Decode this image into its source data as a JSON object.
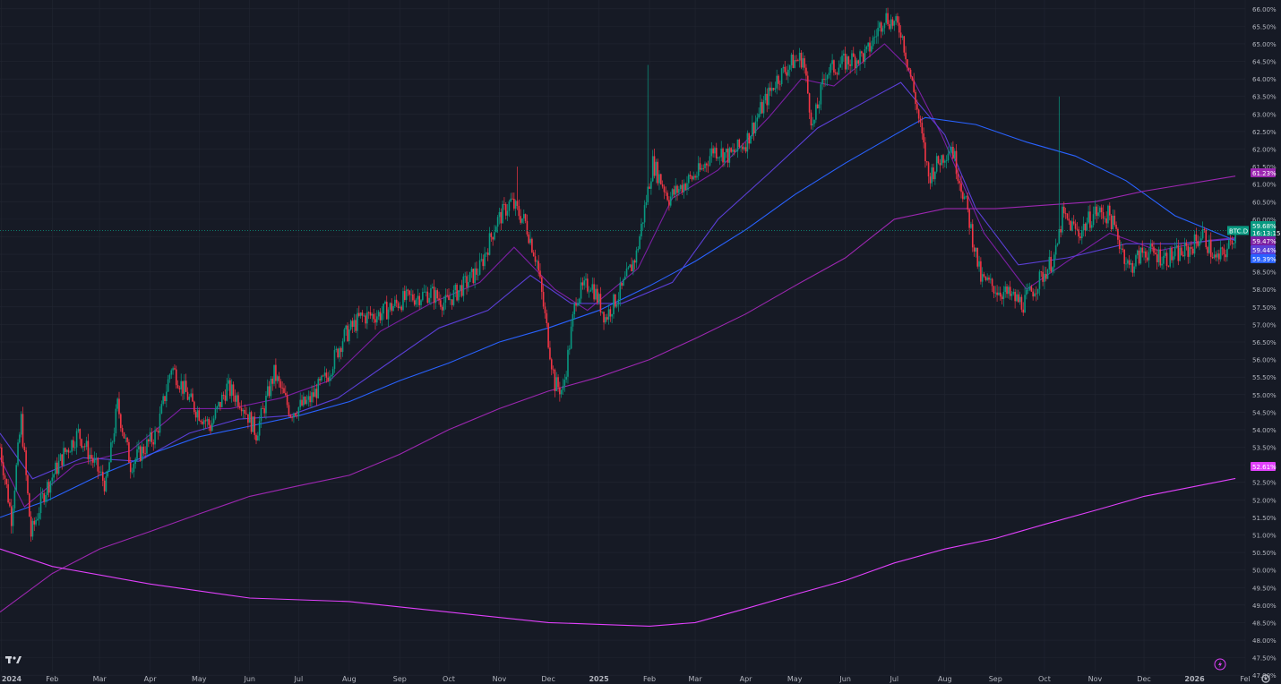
{
  "chart_data": {
    "type": "candlestick",
    "symbol_label": "BTC.D",
    "badges": [
      {
        "name": "price-badge",
        "text": "59.68%",
        "value": 59.68,
        "color": "#089981"
      },
      {
        "name": "countdown-badge",
        "text": "16:13:15",
        "value": 59.58,
        "color": "#089981"
      },
      {
        "name": "ma-20-badge",
        "text": "59.47%",
        "value": 59.47,
        "color": "#7b1fa2"
      },
      {
        "name": "ma-50-badge",
        "text": "59.44%",
        "value": 59.44,
        "color": "#5b3fd6"
      },
      {
        "name": "ma-fast-badge",
        "text": "59.39%",
        "value": 59.39,
        "color": "#2962ff"
      },
      {
        "name": "ma-200-badge",
        "text": "61.23%",
        "value": 61.23,
        "color": "#9c27b0"
      },
      {
        "name": "ma-long-badge",
        "text": "52.61%",
        "value": 52.61,
        "color": "#e040fb"
      }
    ],
    "x_axis": {
      "start_date": "2023-12-31",
      "end_date": "2026-02-01",
      "ticks": [
        {
          "label": "2024",
          "date": "2024-01-01",
          "bold": true
        },
        {
          "label": "Feb",
          "date": "2024-02-01"
        },
        {
          "label": "Mar",
          "date": "2024-03-01"
        },
        {
          "label": "Apr",
          "date": "2024-04-01"
        },
        {
          "label": "May",
          "date": "2024-05-01"
        },
        {
          "label": "Jun",
          "date": "2024-06-01"
        },
        {
          "label": "Jul",
          "date": "2024-07-01"
        },
        {
          "label": "Aug",
          "date": "2024-08-01"
        },
        {
          "label": "Sep",
          "date": "2024-09-01"
        },
        {
          "label": "Oct",
          "date": "2024-10-01"
        },
        {
          "label": "Nov",
          "date": "2024-11-01"
        },
        {
          "label": "Dec",
          "date": "2024-12-01"
        },
        {
          "label": "2025",
          "date": "2025-01-01",
          "bold": true
        },
        {
          "label": "Feb",
          "date": "2025-02-01"
        },
        {
          "label": "Mar",
          "date": "2025-03-01"
        },
        {
          "label": "Apr",
          "date": "2025-04-01"
        },
        {
          "label": "May",
          "date": "2025-05-01"
        },
        {
          "label": "Jun",
          "date": "2025-06-01"
        },
        {
          "label": "Jul",
          "date": "2025-07-01"
        },
        {
          "label": "Aug",
          "date": "2025-08-01"
        },
        {
          "label": "Sep",
          "date": "2025-09-01"
        },
        {
          "label": "Oct",
          "date": "2025-10-01"
        },
        {
          "label": "Nov",
          "date": "2025-11-01"
        },
        {
          "label": "Dec",
          "date": "2025-12-01"
        },
        {
          "label": "2026",
          "date": "2026-01-01",
          "bold": true
        },
        {
          "label": "Fel",
          "date": "2026-02-01"
        }
      ]
    },
    "y_axis": {
      "min": 46.75,
      "max": 66.25,
      "unit": "%",
      "ticks": [
        "66.00%",
        "65.50%",
        "65.00%",
        "64.50%",
        "64.00%",
        "63.50%",
        "63.00%",
        "62.50%",
        "62.00%",
        "61.50%",
        "61.00%",
        "60.50%",
        "60.00%",
        "59.50%",
        "59.00%",
        "58.50%",
        "58.00%",
        "57.50%",
        "57.00%",
        "56.50%",
        "56.00%",
        "55.50%",
        "55.00%",
        "54.50%",
        "54.00%",
        "53.50%",
        "53.00%",
        "52.50%",
        "52.00%",
        "51.50%",
        "51.00%",
        "50.50%",
        "50.00%",
        "49.50%",
        "49.00%",
        "48.50%",
        "48.00%",
        "47.50%",
        "47.00%"
      ]
    },
    "price_series": {
      "name": "BTC.D",
      "keypoints": [
        [
          "2023-12-31",
          53.5
        ],
        [
          "2024-01-07",
          51.5
        ],
        [
          "2024-01-13",
          54.3
        ],
        [
          "2024-01-19",
          51.0
        ],
        [
          "2024-01-27",
          52.2
        ],
        [
          "2024-02-08",
          53.3
        ],
        [
          "2024-02-17",
          53.9
        ],
        [
          "2024-03-05",
          52.4
        ],
        [
          "2024-03-12",
          54.7
        ],
        [
          "2024-03-20",
          53.0
        ],
        [
          "2024-04-05",
          53.9
        ],
        [
          "2024-04-14",
          55.8
        ],
        [
          "2024-04-27",
          54.7
        ],
        [
          "2024-05-08",
          54.1
        ],
        [
          "2024-05-18",
          55.2
        ],
        [
          "2024-05-27",
          54.8
        ],
        [
          "2024-06-05",
          53.9
        ],
        [
          "2024-06-16",
          55.6
        ],
        [
          "2024-06-26",
          54.5
        ],
        [
          "2024-07-07",
          54.8
        ],
        [
          "2024-07-18",
          55.5
        ],
        [
          "2024-07-28",
          56.6
        ],
        [
          "2024-08-08",
          57.2
        ],
        [
          "2024-08-20",
          57.3
        ],
        [
          "2024-09-03",
          57.7
        ],
        [
          "2024-09-20",
          57.9
        ],
        [
          "2024-09-29",
          57.6
        ],
        [
          "2024-10-12",
          58.2
        ],
        [
          "2024-10-20",
          58.6
        ],
        [
          "2024-10-30",
          59.9
        ],
        [
          "2024-11-08",
          60.5
        ],
        [
          "2024-11-17",
          59.9
        ],
        [
          "2024-11-24",
          58.8
        ],
        [
          "2024-12-05",
          55.3
        ],
        [
          "2024-12-10",
          55.1
        ],
        [
          "2024-12-18",
          57.8
        ],
        [
          "2024-12-27",
          58.2
        ],
        [
          "2025-01-05",
          57.2
        ],
        [
          "2025-01-15",
          58.0
        ],
        [
          "2025-01-24",
          59.0
        ],
        [
          "2025-02-03",
          61.6
        ],
        [
          "2025-02-13",
          60.6
        ],
        [
          "2025-02-22",
          61.0
        ],
        [
          "2025-03-05",
          61.4
        ],
        [
          "2025-03-12",
          62.0
        ],
        [
          "2025-03-22",
          61.8
        ],
        [
          "2025-04-01",
          62.2
        ],
        [
          "2025-04-10",
          63.1
        ],
        [
          "2025-04-20",
          64.0
        ],
        [
          "2025-04-30",
          64.5
        ],
        [
          "2025-05-06",
          64.6
        ],
        [
          "2025-05-12",
          62.6
        ],
        [
          "2025-05-20",
          64.2
        ],
        [
          "2025-06-02",
          64.5
        ],
        [
          "2025-06-14",
          64.7
        ],
        [
          "2025-06-25",
          65.8
        ],
        [
          "2025-07-05",
          65.4
        ],
        [
          "2025-07-14",
          63.4
        ],
        [
          "2025-07-22",
          61.2
        ],
        [
          "2025-07-29",
          61.7
        ],
        [
          "2025-08-05",
          62.1
        ],
        [
          "2025-08-14",
          60.4
        ],
        [
          "2025-08-23",
          58.3
        ],
        [
          "2025-09-02",
          58.0
        ],
        [
          "2025-09-10",
          57.8
        ],
        [
          "2025-09-18",
          57.6
        ],
        [
          "2025-09-30",
          58.4
        ],
        [
          "2025-10-08",
          59.0
        ],
        [
          "2025-10-12",
          60.1
        ],
        [
          "2025-10-22",
          59.6
        ],
        [
          "2025-11-01",
          60.2
        ],
        [
          "2025-11-10",
          60.1
        ],
        [
          "2025-11-22",
          58.6
        ],
        [
          "2025-12-01",
          59.1
        ],
        [
          "2025-12-15",
          58.9
        ],
        [
          "2025-12-28",
          59.1
        ],
        [
          "2026-01-06",
          59.6
        ],
        [
          "2026-01-14",
          58.8
        ],
        [
          "2026-01-22",
          59.2
        ],
        [
          "2026-01-26",
          59.68
        ]
      ]
    },
    "ma_lines": [
      {
        "name": "ma-20",
        "color": "#7b1fa2",
        "points": [
          [
            "2023-12-31",
            53.2
          ],
          [
            "2024-01-15",
            51.8
          ],
          [
            "2024-02-15",
            53.0
          ],
          [
            "2024-03-20",
            53.4
          ],
          [
            "2024-04-20",
            54.6
          ],
          [
            "2024-05-20",
            54.6
          ],
          [
            "2024-06-20",
            54.9
          ],
          [
            "2024-07-20",
            55.4
          ],
          [
            "2024-08-20",
            56.8
          ],
          [
            "2024-09-20",
            57.6
          ],
          [
            "2024-10-20",
            58.2
          ],
          [
            "2024-11-10",
            59.2
          ],
          [
            "2024-12-05",
            58.0
          ],
          [
            "2024-12-25",
            57.4
          ],
          [
            "2025-01-25",
            58.6
          ],
          [
            "2025-02-15",
            60.6
          ],
          [
            "2025-03-15",
            61.4
          ],
          [
            "2025-04-15",
            62.9
          ],
          [
            "2025-05-05",
            64.0
          ],
          [
            "2025-05-25",
            63.8
          ],
          [
            "2025-06-25",
            65.0
          ],
          [
            "2025-07-08",
            64.4
          ],
          [
            "2025-07-30",
            62.4
          ],
          [
            "2025-08-25",
            59.6
          ],
          [
            "2025-09-20",
            58.0
          ],
          [
            "2025-10-15",
            58.8
          ],
          [
            "2025-11-10",
            59.6
          ],
          [
            "2025-12-10",
            59.1
          ],
          [
            "2026-01-10",
            59.4
          ],
          [
            "2026-01-26",
            59.47
          ]
        ]
      },
      {
        "name": "ma-50",
        "color": "#5b3fd6",
        "points": [
          [
            "2023-12-31",
            53.9
          ],
          [
            "2024-01-20",
            52.6
          ],
          [
            "2024-02-20",
            53.2
          ],
          [
            "2024-03-25",
            53.1
          ],
          [
            "2024-04-25",
            53.9
          ],
          [
            "2024-05-25",
            54.3
          ],
          [
            "2024-06-25",
            54.4
          ],
          [
            "2024-07-25",
            54.9
          ],
          [
            "2024-08-25",
            55.9
          ],
          [
            "2024-09-25",
            56.9
          ],
          [
            "2024-10-25",
            57.4
          ],
          [
            "2024-11-20",
            58.4
          ],
          [
            "2024-12-15",
            57.6
          ],
          [
            "2025-01-15",
            57.6
          ],
          [
            "2025-02-15",
            58.2
          ],
          [
            "2025-03-15",
            60.0
          ],
          [
            "2025-04-15",
            61.3
          ],
          [
            "2025-05-15",
            62.6
          ],
          [
            "2025-06-15",
            63.4
          ],
          [
            "2025-07-05",
            63.9
          ],
          [
            "2025-08-01",
            62.4
          ],
          [
            "2025-08-20",
            60.3
          ],
          [
            "2025-09-15",
            58.7
          ],
          [
            "2025-10-15",
            58.9
          ],
          [
            "2025-11-20",
            59.3
          ],
          [
            "2025-12-20",
            59.3
          ],
          [
            "2026-01-26",
            59.44
          ]
        ]
      },
      {
        "name": "ma-100",
        "color": "#2962ff",
        "points": [
          [
            "2023-12-31",
            51.5
          ],
          [
            "2024-01-30",
            52.0
          ],
          [
            "2024-03-01",
            52.7
          ],
          [
            "2024-04-01",
            53.3
          ],
          [
            "2024-05-01",
            53.8
          ],
          [
            "2024-06-01",
            54.1
          ],
          [
            "2024-07-01",
            54.4
          ],
          [
            "2024-08-01",
            54.8
          ],
          [
            "2024-09-01",
            55.4
          ],
          [
            "2024-10-01",
            55.9
          ],
          [
            "2024-11-01",
            56.5
          ],
          [
            "2024-12-01",
            56.9
          ],
          [
            "2025-01-01",
            57.4
          ],
          [
            "2025-02-01",
            58.1
          ],
          [
            "2025-03-01",
            58.8
          ],
          [
            "2025-04-01",
            59.7
          ],
          [
            "2025-05-01",
            60.7
          ],
          [
            "2025-06-01",
            61.6
          ],
          [
            "2025-07-01",
            62.4
          ],
          [
            "2025-07-20",
            62.9
          ],
          [
            "2025-08-20",
            62.7
          ],
          [
            "2025-09-20",
            62.2
          ],
          [
            "2025-10-20",
            61.8
          ],
          [
            "2025-11-20",
            61.1
          ],
          [
            "2025-12-20",
            60.1
          ],
          [
            "2026-01-26",
            59.39
          ]
        ]
      },
      {
        "name": "ma-200",
        "color": "#9c27b0",
        "points": [
          [
            "2023-12-31",
            48.8
          ],
          [
            "2024-02-01",
            49.9
          ],
          [
            "2024-03-01",
            50.6
          ],
          [
            "2024-04-01",
            51.1
          ],
          [
            "2024-05-01",
            51.6
          ],
          [
            "2024-06-01",
            52.1
          ],
          [
            "2024-07-01",
            52.4
          ],
          [
            "2024-08-01",
            52.7
          ],
          [
            "2024-09-01",
            53.3
          ],
          [
            "2024-10-01",
            54.0
          ],
          [
            "2024-11-01",
            54.6
          ],
          [
            "2024-12-01",
            55.1
          ],
          [
            "2025-01-01",
            55.5
          ],
          [
            "2025-02-01",
            56.0
          ],
          [
            "2025-03-01",
            56.6
          ],
          [
            "2025-04-01",
            57.3
          ],
          [
            "2025-05-01",
            58.1
          ],
          [
            "2025-06-01",
            58.9
          ],
          [
            "2025-07-01",
            60.0
          ],
          [
            "2025-08-01",
            60.3
          ],
          [
            "2025-09-01",
            60.3
          ],
          [
            "2025-10-01",
            60.4
          ],
          [
            "2025-11-01",
            60.5
          ],
          [
            "2025-12-01",
            60.8
          ],
          [
            "2026-01-26",
            61.23
          ]
        ]
      },
      {
        "name": "ma-long",
        "color": "#e040fb",
        "points": [
          [
            "2023-12-31",
            50.6
          ],
          [
            "2024-02-01",
            50.1
          ],
          [
            "2024-04-01",
            49.6
          ],
          [
            "2024-06-01",
            49.2
          ],
          [
            "2024-08-01",
            49.1
          ],
          [
            "2024-10-01",
            48.8
          ],
          [
            "2024-12-01",
            48.5
          ],
          [
            "2025-02-01",
            48.4
          ],
          [
            "2025-03-01",
            48.5
          ],
          [
            "2025-04-01",
            48.9
          ],
          [
            "2025-05-01",
            49.3
          ],
          [
            "2025-06-01",
            49.7
          ],
          [
            "2025-07-01",
            50.2
          ],
          [
            "2025-08-01",
            50.6
          ],
          [
            "2025-09-01",
            50.9
          ],
          [
            "2025-10-01",
            51.3
          ],
          [
            "2025-11-01",
            51.7
          ],
          [
            "2025-12-01",
            52.1
          ],
          [
            "2026-01-26",
            52.61
          ]
        ]
      }
    ],
    "colors": {
      "background": "#161a25",
      "grid": "#222632",
      "up": "#089981",
      "down": "#f23645",
      "axis_text": "#b2b5be",
      "last_price_line": "#089981"
    },
    "grid": true
  }
}
